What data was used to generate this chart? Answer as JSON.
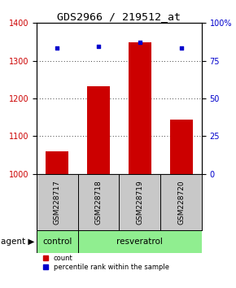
{
  "title": "GDS2966 / 219512_at",
  "samples": [
    "GSM228717",
    "GSM228718",
    "GSM228719",
    "GSM228720"
  ],
  "counts": [
    1060,
    1232,
    1350,
    1145
  ],
  "percentiles": [
    83.5,
    84.5,
    87,
    83.5
  ],
  "ylim_left": [
    1000,
    1400
  ],
  "ylim_right": [
    0,
    100
  ],
  "yticks_left": [
    1000,
    1100,
    1200,
    1300,
    1400
  ],
  "yticks_right": [
    0,
    25,
    50,
    75,
    100
  ],
  "bar_color": "#cc0000",
  "dot_color": "#0000cc",
  "bar_width": 0.55,
  "label_row_color": "#c8c8c8",
  "agent_label": "agent",
  "legend_count_label": "count",
  "legend_pct_label": "percentile rank within the sample",
  "title_fontsize": 9.5,
  "tick_fontsize": 7,
  "sample_fontsize": 6.5,
  "group_fontsize": 7.5,
  "background_color": "#ffffff",
  "plot_bg": "#ffffff"
}
